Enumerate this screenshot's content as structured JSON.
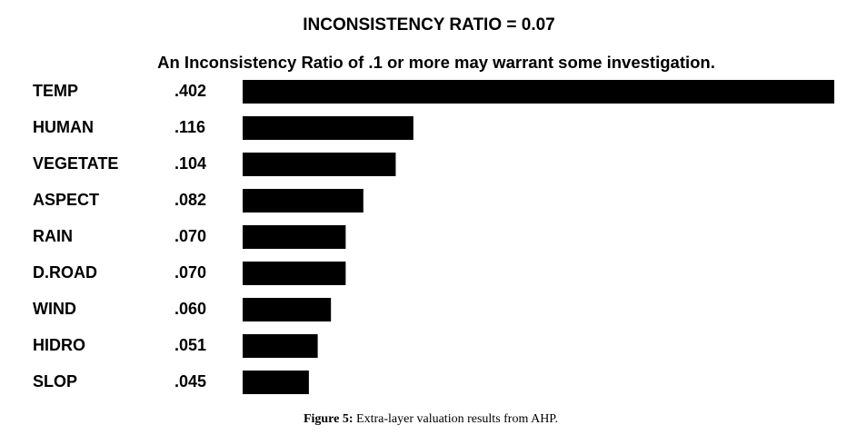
{
  "chart_data": {
    "type": "bar",
    "orientation": "horizontal",
    "title": "INCONSISTENCY RATIO = 0.07",
    "subtitle": "An Inconsistency Ratio of .1 or more may warrant some investigation.",
    "categories": [
      "TEMP",
      "HUMAN",
      "VEGETATE",
      "ASPECT",
      "RAIN",
      "D.ROAD",
      "WIND",
      "HIDRO",
      "SLOP"
    ],
    "values": [
      0.402,
      0.116,
      0.104,
      0.082,
      0.07,
      0.07,
      0.06,
      0.051,
      0.045
    ],
    "value_labels": [
      ".402",
      ".116",
      ".104",
      ".082",
      ".070",
      ".070",
      ".060",
      ".051",
      ".045"
    ],
    "color": "#000000"
  },
  "caption": {
    "label": "Figure 5:",
    "text": "Extra-layer valuation results from AHP."
  }
}
